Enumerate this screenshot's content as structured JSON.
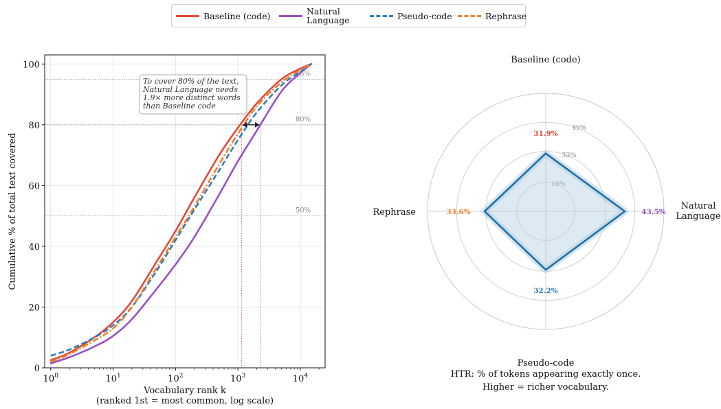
{
  "legend": {
    "items": [
      {
        "label": "Baseline (code)",
        "color": "#e04b3a",
        "style": "solid"
      },
      {
        "label": "Natural\nLanguage",
        "color": "#9b4fc4",
        "style": "solid"
      },
      {
        "label": "Pseudo-code",
        "color": "#2c7fb8",
        "style": "dashed"
      },
      {
        "label": "Rephrase",
        "color": "#ef7f2a",
        "style": "dashdot"
      }
    ]
  },
  "chart_data": [
    {
      "type": "line",
      "title": "",
      "xlabel": "Vocabulary rank k\n(ranked 1st = most common, log scale)",
      "ylabel": "Cumulative % of total text covered",
      "x_scale": "log",
      "xlim": [
        0.8,
        25000
      ],
      "ylim": [
        0,
        103
      ],
      "x_ticks": [
        {
          "value": 1,
          "base": "10",
          "exp": "0"
        },
        {
          "value": 10,
          "base": "10",
          "exp": "1"
        },
        {
          "value": 100,
          "base": "10",
          "exp": "2"
        },
        {
          "value": 1000,
          "base": "10",
          "exp": "3"
        },
        {
          "value": 10000,
          "base": "10",
          "exp": "4"
        }
      ],
      "y_ticks": [
        0,
        20,
        40,
        60,
        80,
        100
      ],
      "grid": true,
      "reference_lines": [
        {
          "y": 95,
          "label": "95%"
        },
        {
          "y": 80,
          "label": "80%"
        },
        {
          "y": 50,
          "label": "50%"
        }
      ],
      "annotation": {
        "text": "To cover 80% of the text,\nNatural Language needs\n1.9× more distinct words\nthan Baseline code",
        "arrow_from_x": 1150,
        "arrow_to_x": 2300,
        "arrow_y": 80
      },
      "series": [
        {
          "name": "Baseline (code)",
          "color": "#e04b3a",
          "style": "solid",
          "x": [
            1,
            2,
            5,
            10,
            20,
            50,
            100,
            200,
            500,
            1000,
            2000,
            5000,
            10000,
            15000
          ],
          "y": [
            2.5,
            5,
            10,
            15,
            22,
            35,
            45,
            56,
            70,
            79,
            87,
            95,
            98.5,
            100
          ]
        },
        {
          "name": "Natural Language",
          "color": "#9b4fc4",
          "style": "solid",
          "x": [
            1,
            2,
            5,
            10,
            20,
            50,
            100,
            200,
            500,
            1000,
            2000,
            5000,
            10000,
            15000
          ],
          "y": [
            1.5,
            3.5,
            7,
            10.5,
            16,
            26,
            34,
            43,
            57,
            68,
            78,
            91,
            97,
            100
          ]
        },
        {
          "name": "Pseudo-code",
          "color": "#2c7fb8",
          "style": "dashed",
          "x": [
            1,
            2,
            5,
            10,
            20,
            50,
            100,
            200,
            500,
            1000,
            2000,
            5000,
            10000,
            15000
          ],
          "y": [
            4,
            6,
            10,
            14,
            20,
            32,
            42,
            52,
            65,
            75,
            84,
            93,
            97.5,
            100
          ]
        },
        {
          "name": "Rephrase",
          "color": "#ef7f2a",
          "style": "dashdot",
          "x": [
            1,
            2,
            5,
            10,
            20,
            50,
            100,
            200,
            500,
            1000,
            2000,
            5000,
            10000,
            15000
          ],
          "y": [
            2,
            4.5,
            9,
            13,
            20,
            33,
            43,
            53,
            67,
            77,
            86,
            94,
            98,
            100
          ]
        }
      ]
    },
    {
      "type": "radar",
      "title": "HTR: % of tokens appearing exactly once.\nHigher = richer vocabulary.",
      "axes": [
        {
          "label": "Baseline (code)",
          "value": 31.9,
          "value_label": "31.9%",
          "color": "#e04b3a"
        },
        {
          "label": "Natural\nLanguage",
          "value": 43.5,
          "value_label": "43.5%",
          "color": "#9b4fc4"
        },
        {
          "label": "Pseudo-code",
          "value": 32.2,
          "value_label": "32.2%",
          "color": "#2c7fb8"
        },
        {
          "label": "Rephrase",
          "value": 33.6,
          "value_label": "33.6%",
          "color": "#ef7f2a"
        }
      ],
      "r_max": 65,
      "r_ticks": [
        {
          "value": 16,
          "label": "16%"
        },
        {
          "value": 33,
          "label": "33%"
        },
        {
          "value": 49,
          "label": "49%"
        }
      ],
      "polygon_color": "#1f6fa8",
      "fill_color": "#b5d0e3"
    }
  ]
}
